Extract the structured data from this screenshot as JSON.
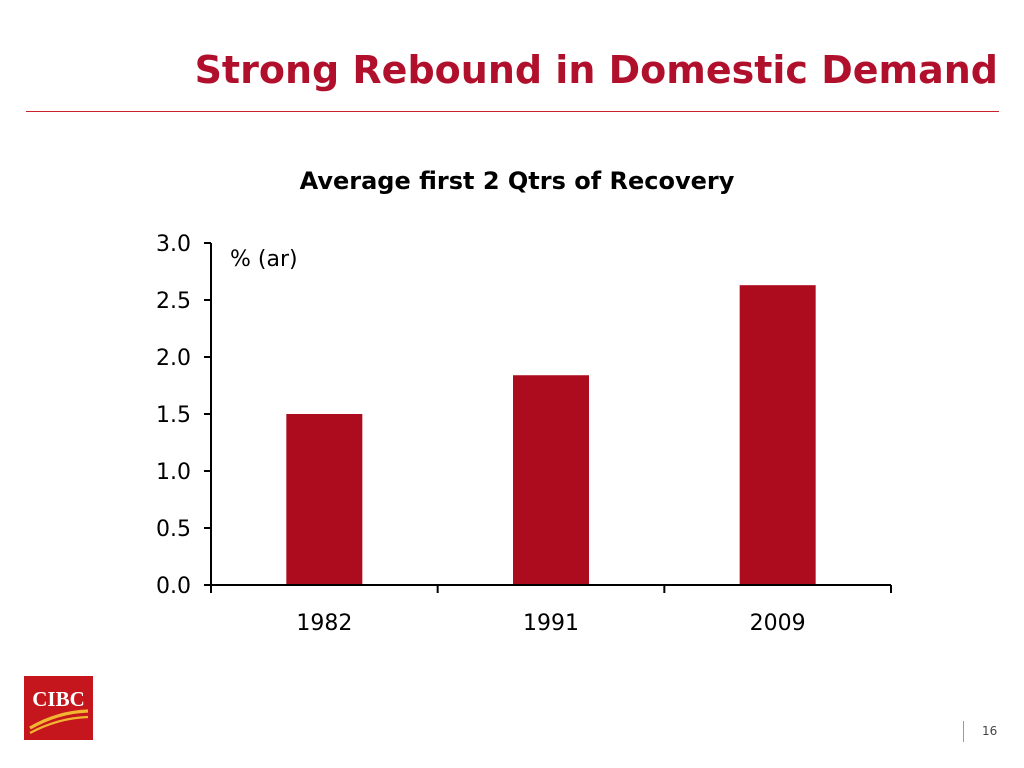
{
  "slide": {
    "title": "Strong Rebound in Domestic Demand",
    "page_number": "16"
  },
  "logo": {
    "text": "CIBC",
    "color": "#c4161c"
  },
  "chart_data": {
    "type": "bar",
    "title": "Average first 2 Qtrs of Recovery",
    "unit_label": "% (ar)",
    "categories": [
      "1982",
      "1991",
      "2009"
    ],
    "values": [
      1.5,
      1.84,
      2.63
    ],
    "ylim": [
      0,
      3.0
    ],
    "yticks": [
      "0.0",
      "0.5",
      "1.0",
      "1.5",
      "2.0",
      "2.5",
      "3.0"
    ],
    "xlabel": "",
    "ylabel": "",
    "grid": false,
    "legend": "none",
    "bar_color": "#ad0c1f"
  }
}
